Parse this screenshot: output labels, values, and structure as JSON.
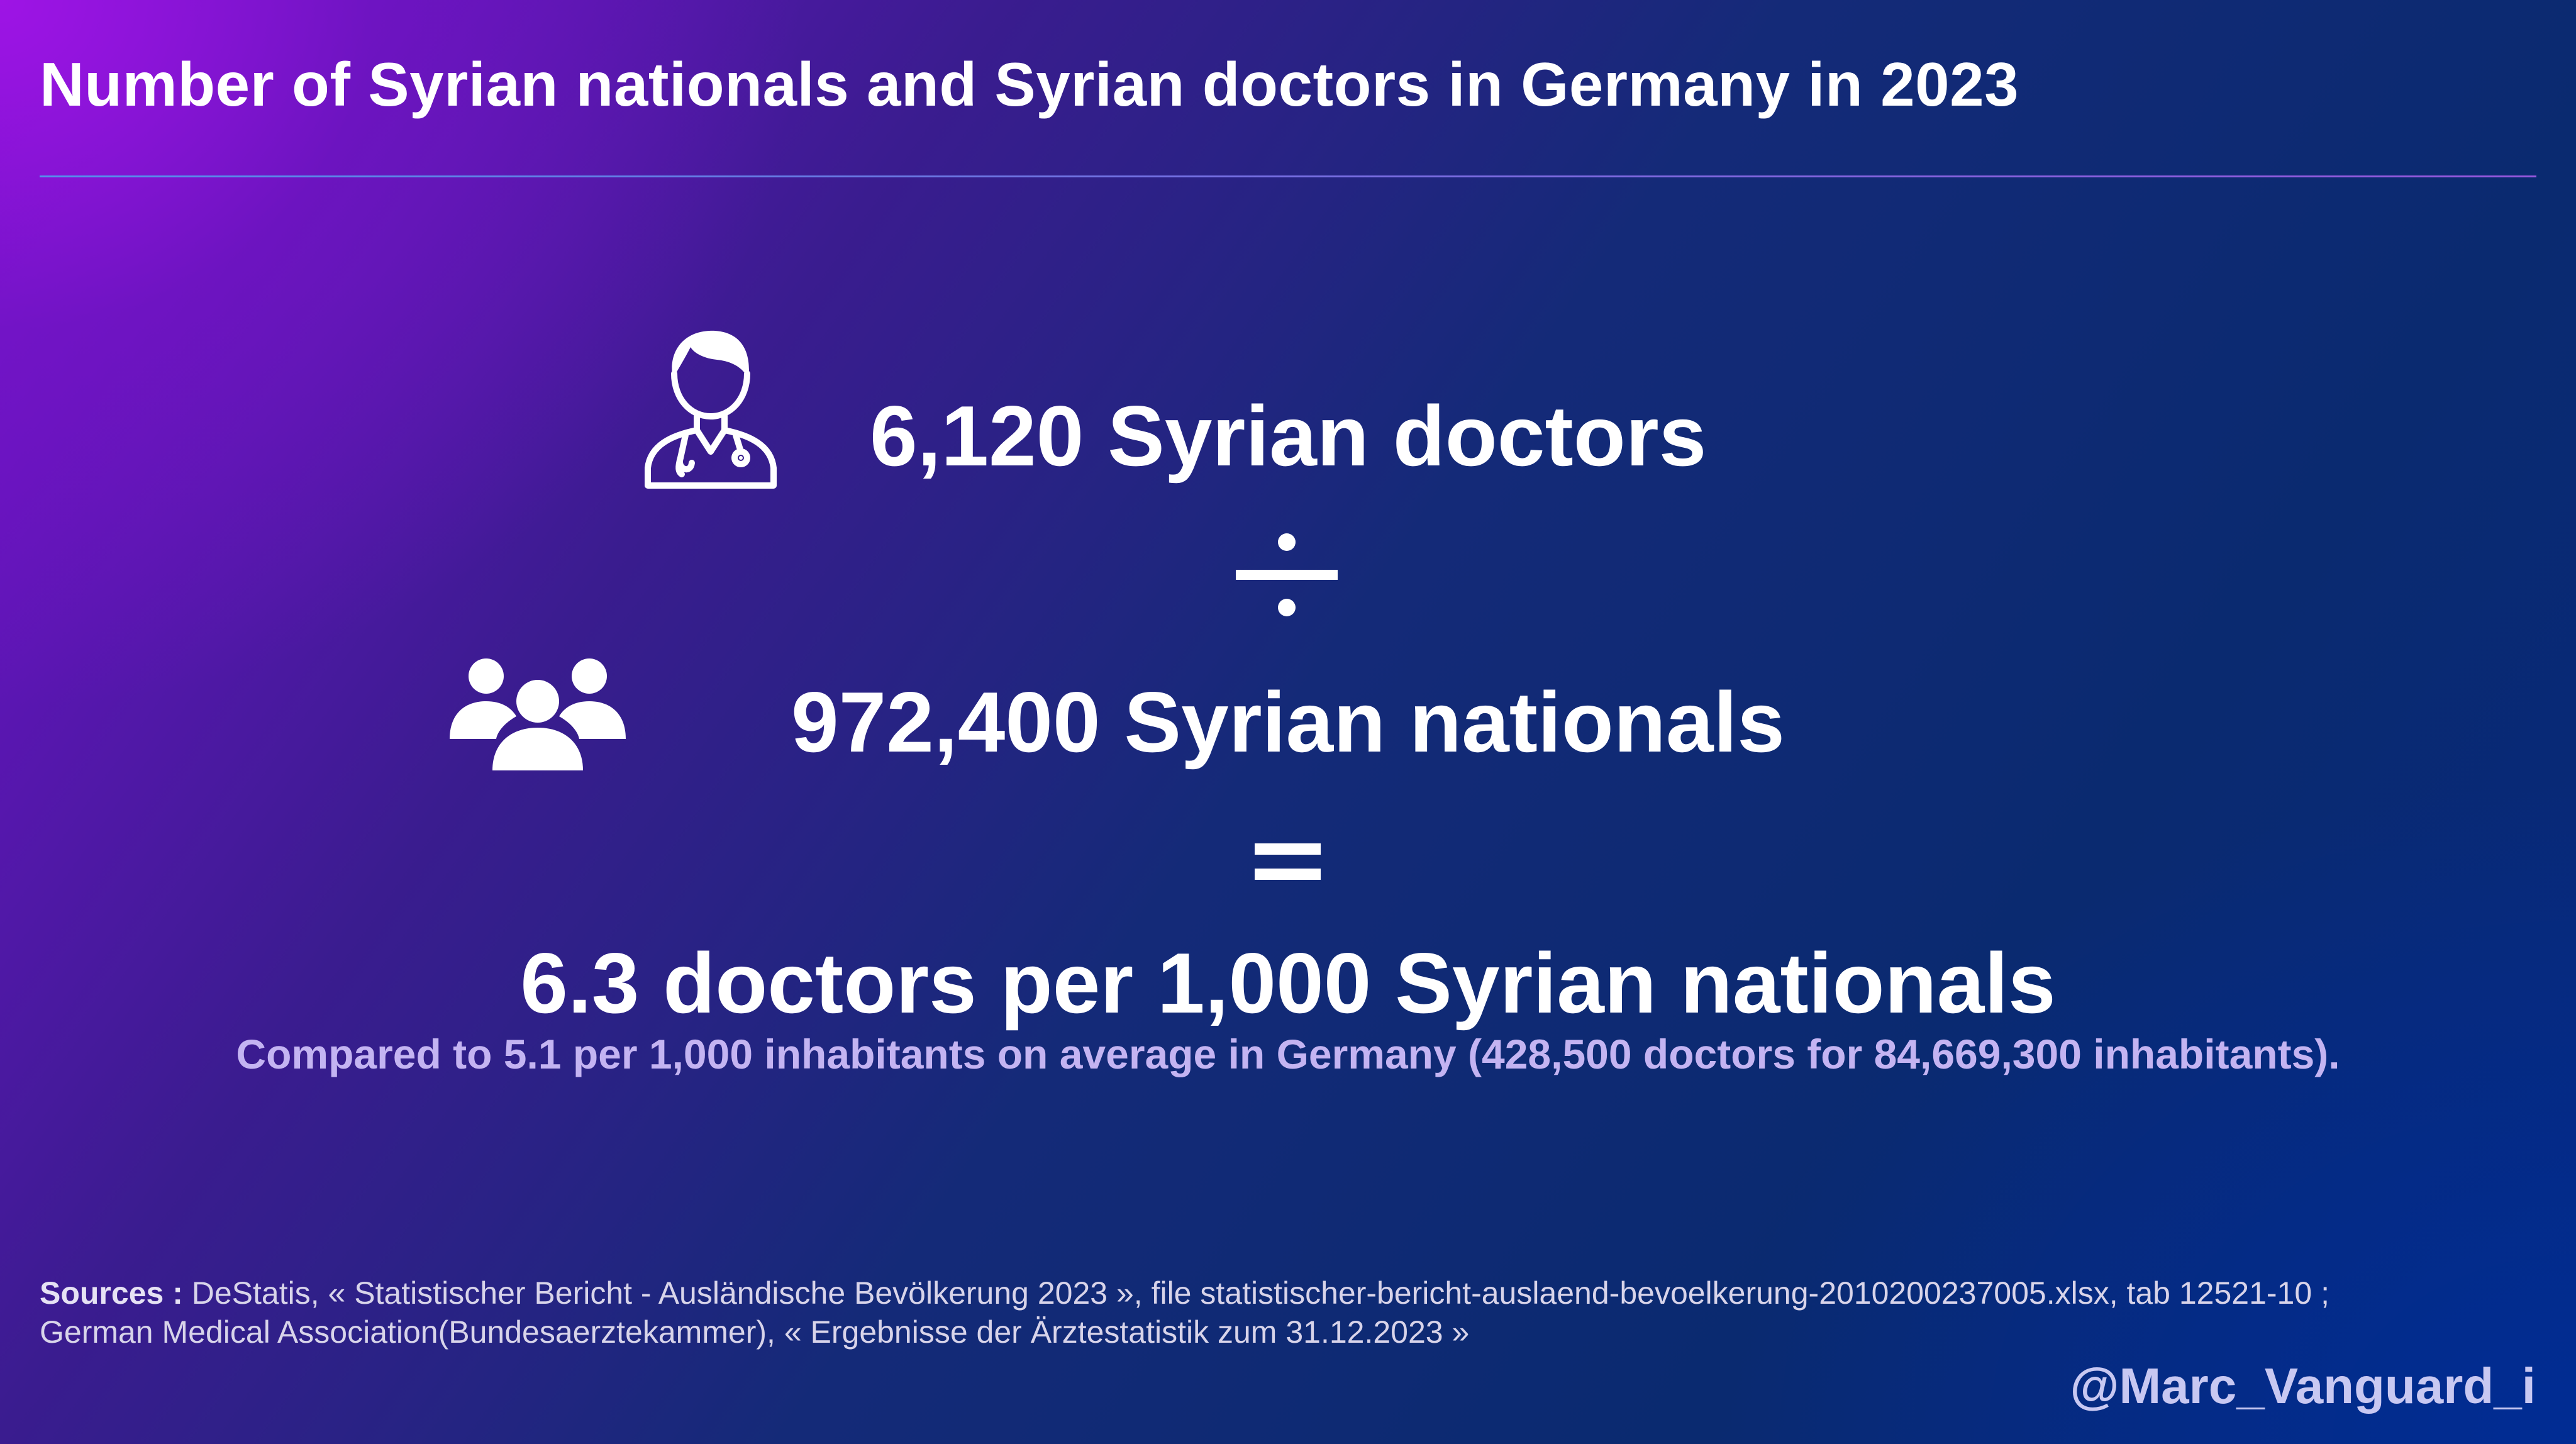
{
  "header": {
    "title": "Number of Syrian nationals and Syrian doctors in Germany in 2023"
  },
  "equation": {
    "doctors": {
      "value_label": "6,120 Syrian doctors",
      "icon": "doctor-icon"
    },
    "operator_divide_icon": "divide-icon",
    "nationals": {
      "value_label": "972,400 Syrian nationals",
      "icon": "group-icon"
    },
    "operator_equals_icon": "equals-icon",
    "result": "6.3 doctors per 1,000 Syrian nationals",
    "comparison": "Compared to 5.1 per 1,000 inhabitants on average in Germany (428,500 doctors for 84,669,300 inhabitants)."
  },
  "footer": {
    "sources_label": "Sources :",
    "sources_line1": "DeStatis, « Statistischer Bericht - Ausländische Bevölkerung 2023 », file statistischer-bericht-auslaend-bevoelkerung-2010200237005.xlsx, tab 12521-10 ;",
    "sources_line2": "German Medical Association(Bundesaerztekammer), « Ergebnisse der Ärztestatistik zum 31.12.2023 »",
    "handle": "@Marc_Vanguard_i"
  },
  "colors": {
    "accent_text": "#c4b4f2",
    "handle_text": "#c8c8f2",
    "divider_start": "#4aa8f0",
    "divider_end": "#b060f0"
  }
}
